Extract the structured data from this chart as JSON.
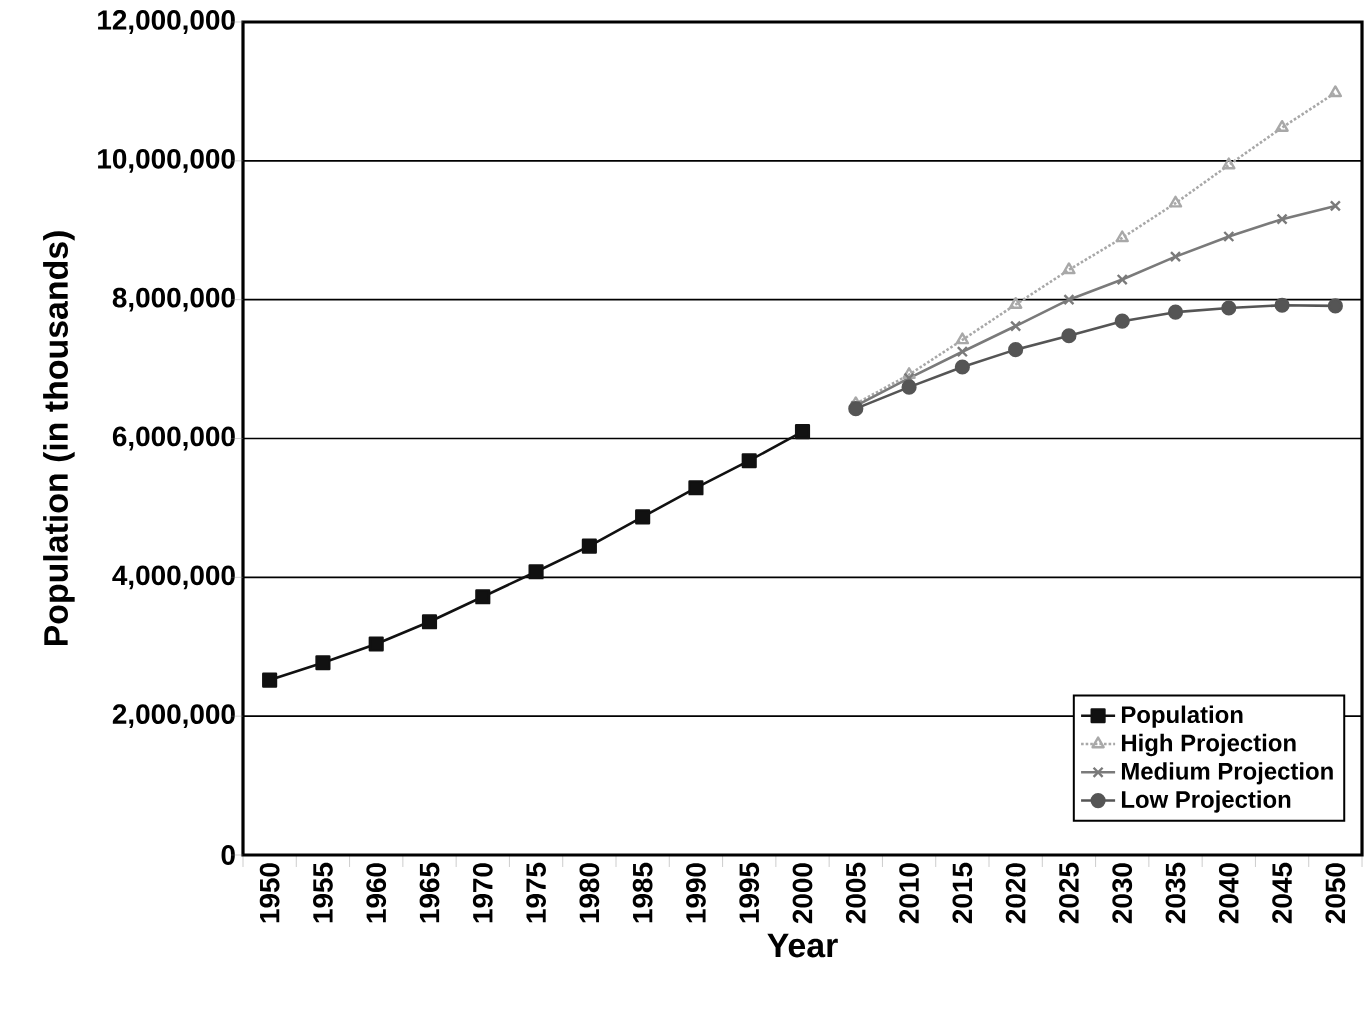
{
  "chart_data": {
    "type": "line",
    "xlabel": "Year",
    "ylabel": "Population (in thousands)",
    "categories": [
      "1950",
      "1955",
      "1960",
      "1965",
      "1970",
      "1975",
      "1980",
      "1985",
      "1990",
      "1995",
      "2000",
      "2005",
      "2010",
      "2015",
      "2020",
      "2025",
      "2030",
      "2035",
      "2040",
      "2045",
      "2050"
    ],
    "series": [
      {
        "name": "Population",
        "color": "#111111",
        "marker": "square",
        "line_style": "solid",
        "values": [
          2520000,
          2770000,
          3040000,
          3360000,
          3720000,
          4080000,
          4450000,
          4870000,
          5290000,
          5680000,
          6100000,
          null,
          null,
          null,
          null,
          null,
          null,
          null,
          null,
          null,
          null
        ]
      },
      {
        "name": "High Projection",
        "color": "#a8a8a8",
        "marker": "triangle",
        "line_style": "dotted",
        "values": [
          null,
          null,
          null,
          null,
          null,
          null,
          null,
          null,
          null,
          null,
          null,
          6500000,
          6920000,
          7420000,
          7930000,
          8430000,
          8890000,
          9390000,
          9940000,
          10480000,
          10980000
        ]
      },
      {
        "name": "Medium Projection",
        "color": "#7a7a7a",
        "marker": "cross",
        "line_style": "solid",
        "values": [
          null,
          null,
          null,
          null,
          null,
          null,
          null,
          null,
          null,
          null,
          null,
          6470000,
          6870000,
          7250000,
          7620000,
          8000000,
          8290000,
          8620000,
          8910000,
          9160000,
          9350000
        ]
      },
      {
        "name": "Low Projection",
        "color": "#555555",
        "marker": "circle",
        "line_style": "solid",
        "values": [
          null,
          null,
          null,
          null,
          null,
          null,
          null,
          null,
          null,
          null,
          null,
          6430000,
          6740000,
          7030000,
          7280000,
          7480000,
          7690000,
          7820000,
          7880000,
          7920000,
          7910000
        ]
      }
    ],
    "ylim": [
      0,
      12000000
    ],
    "yticks": [
      {
        "value": 0,
        "label": "0"
      },
      {
        "value": 2000000,
        "label": "2,000,000"
      },
      {
        "value": 4000000,
        "label": "4,000,000"
      },
      {
        "value": 6000000,
        "label": "6,000,000"
      },
      {
        "value": 8000000,
        "label": "8,000,000"
      },
      {
        "value": 10000000,
        "label": "10,000,000"
      },
      {
        "value": 12000000,
        "label": "12,000,000"
      }
    ],
    "grid": "y",
    "legend": "bottom right"
  }
}
